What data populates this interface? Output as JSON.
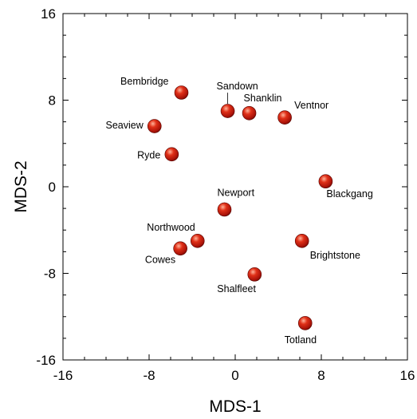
{
  "chart_data": {
    "type": "scatter",
    "title": "",
    "xlabel": "MDS-1",
    "ylabel": "MDS-2",
    "xlim": [
      -16,
      16
    ],
    "ylim": [
      -16,
      16
    ],
    "x_ticks": [
      -16,
      -8,
      0,
      8,
      16
    ],
    "y_ticks": [
      -16,
      -8,
      0,
      8,
      16
    ],
    "grid": false,
    "marker_color": "#c41a0c",
    "points": [
      {
        "name": "Bembridge",
        "x": -5.0,
        "y": 8.7
      },
      {
        "name": "Sandown",
        "x": -0.7,
        "y": 7.0
      },
      {
        "name": "Shanklin",
        "x": 1.3,
        "y": 6.8
      },
      {
        "name": "Ventnor",
        "x": 4.6,
        "y": 6.4
      },
      {
        "name": "Seaview",
        "x": -7.5,
        "y": 5.6
      },
      {
        "name": "Ryde",
        "x": -5.9,
        "y": 3.0
      },
      {
        "name": "Blackgang",
        "x": 8.4,
        "y": 0.5
      },
      {
        "name": "Newport",
        "x": -1.0,
        "y": -2.1
      },
      {
        "name": "Northwood",
        "x": -3.5,
        "y": -5.0
      },
      {
        "name": "Cowes",
        "x": -5.1,
        "y": -5.7
      },
      {
        "name": "Brightstone",
        "x": 6.2,
        "y": -5.0
      },
      {
        "name": "Shalfleet",
        "x": 1.8,
        "y": -8.1
      },
      {
        "name": "Totland",
        "x": 6.5,
        "y": -12.6
      }
    ]
  }
}
